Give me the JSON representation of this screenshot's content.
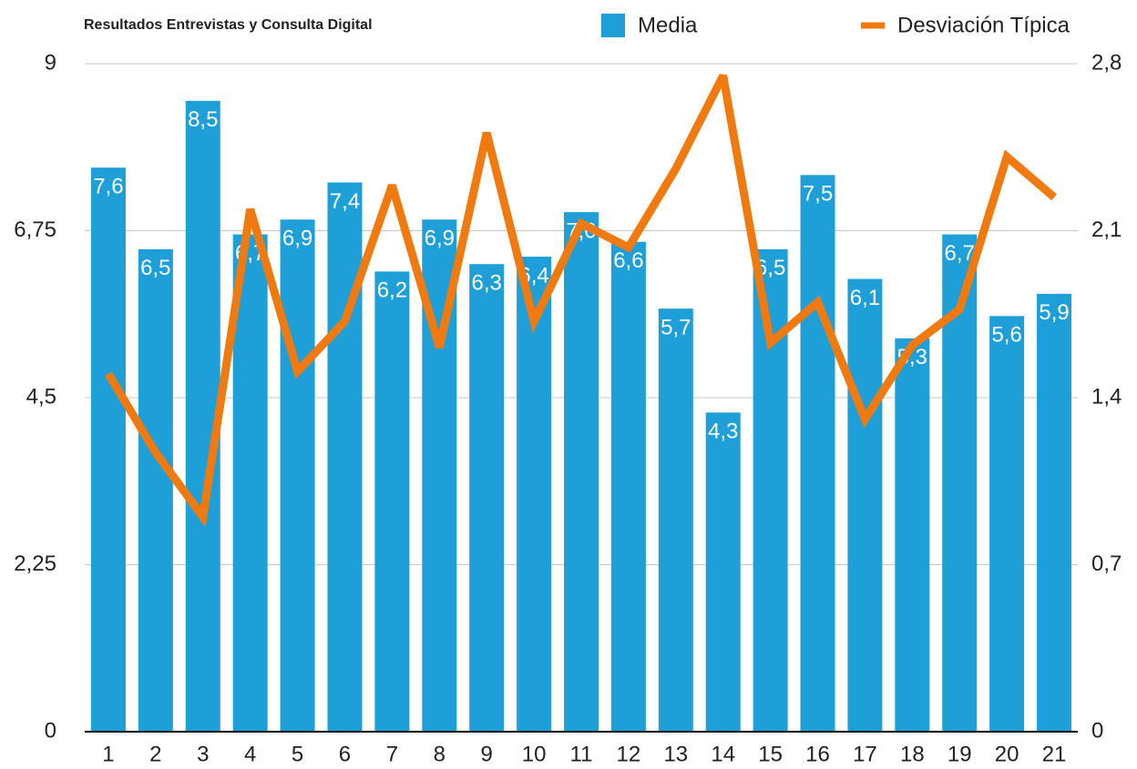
{
  "chart_data": {
    "type": "bar_line",
    "title": "Resultados Entrevistas y Consulta Digital",
    "categories": [
      "1",
      "2",
      "3",
      "4",
      "5",
      "6",
      "7",
      "8",
      "9",
      "10",
      "11",
      "12",
      "13",
      "14",
      "15",
      "16",
      "17",
      "18",
      "19",
      "20",
      "21"
    ],
    "series": [
      {
        "name": "Media",
        "color": "#1f9fd8",
        "type": "bar",
        "values": [
          7.6,
          6.5,
          8.5,
          6.7,
          6.9,
          7.4,
          6.2,
          6.9,
          6.3,
          6.4,
          7.0,
          6.6,
          5.7,
          4.3,
          6.5,
          7.5,
          6.1,
          5.3,
          6.7,
          5.6,
          5.9
        ],
        "value_labels": [
          "7,6",
          "6,5",
          "8,5",
          "6,7",
          "6,9",
          "7,4",
          "6,2",
          "6,9",
          "6,3",
          "6,4",
          "7,0",
          "6,6",
          "5,7",
          "4,3",
          "6,5",
          "7,5",
          "6,1",
          "5,3",
          "6,7",
          "5,6",
          "5,9"
        ]
      },
      {
        "name": "Desviación Típica",
        "color": "#f07a0f",
        "type": "line",
        "axis": "y2",
        "values": [
          1.5,
          1.17,
          0.9,
          2.19,
          1.51,
          1.72,
          2.29,
          1.61,
          2.51,
          1.72,
          2.13,
          2.03,
          2.36,
          2.75,
          1.63,
          1.8,
          1.31,
          1.62,
          1.77,
          2.41,
          2.24
        ]
      }
    ],
    "ylim": [
      0,
      9
    ],
    "yticks": [
      0,
      {
        "value": 2.25,
        "label": "2,25"
      },
      {
        "value": 4.5,
        "label": "4,5"
      },
      {
        "value": 6.75,
        "label": "6,75"
      },
      9
    ],
    "y2lim": [
      0,
      2.8
    ],
    "y2ticks": [
      0,
      {
        "value": 0.7,
        "label": "0,7"
      },
      {
        "value": 1.4,
        "label": "1,4"
      },
      {
        "value": 2.1,
        "label": "2,1"
      },
      {
        "value": 2.8,
        "label": "2,8"
      }
    ],
    "grid": true,
    "legend": "top"
  }
}
